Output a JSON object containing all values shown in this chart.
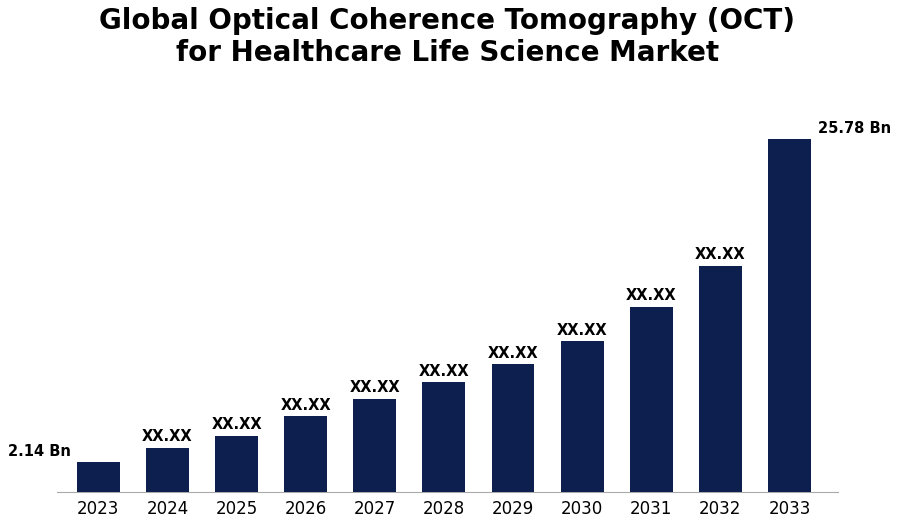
{
  "title_line1": "Global Optical Coherence Tomography (OCT)",
  "title_line2": "for Healthcare Life Science Market",
  "categories": [
    "2023",
    "2024",
    "2025",
    "2026",
    "2027",
    "2028",
    "2029",
    "2030",
    "2031",
    "2032",
    "2033"
  ],
  "values": [
    2.14,
    3.2,
    4.1,
    5.5,
    6.8,
    8.0,
    9.3,
    11.0,
    13.5,
    16.5,
    25.78
  ],
  "bar_color": "#0d1f4e",
  "labels": [
    "2.14 Bn",
    "XX.XX",
    "XX.XX",
    "XX.XX",
    "XX.XX",
    "XX.XX",
    "XX.XX",
    "XX.XX",
    "XX.XX",
    "XX.XX",
    "25.78 Bn"
  ],
  "label_fontsize": 10.5,
  "title_fontsize": 20,
  "tick_fontsize": 12,
  "background_color": "#ffffff",
  "ylim": [
    0,
    30
  ],
  "bar_width": 0.62
}
